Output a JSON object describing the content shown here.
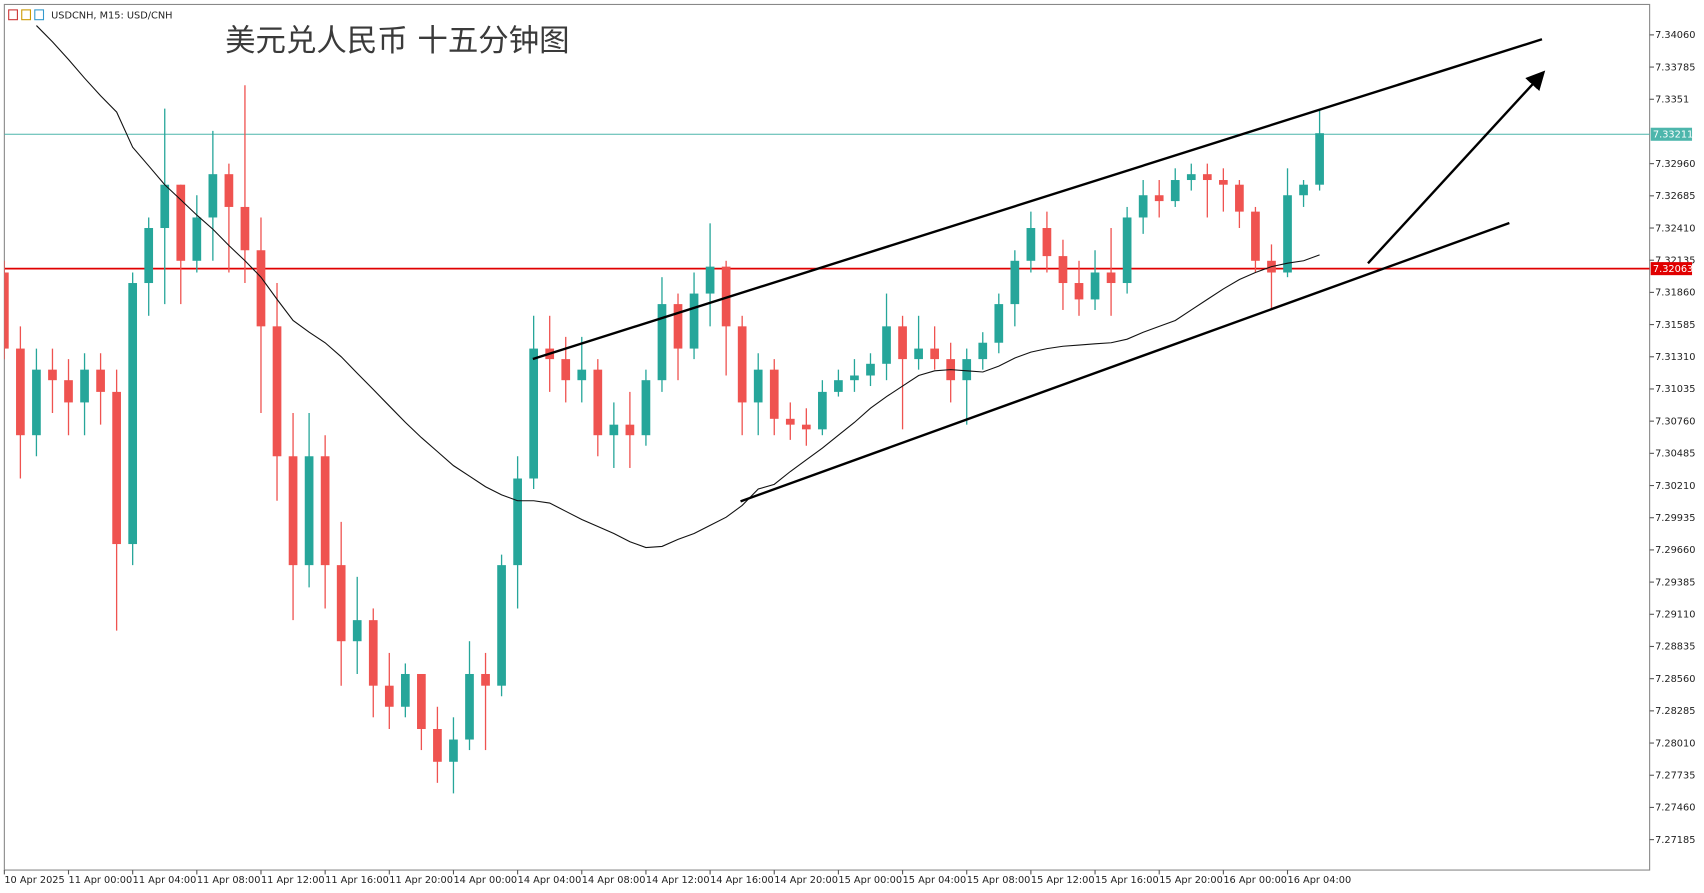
{
  "chart_data": {
    "type": "candlestick",
    "header": "USDCNH, M15: USD/CNH",
    "title": "美元兑人民币 十五分钟图",
    "categories": [
      "10 Apr 2025",
      null,
      null,
      null,
      "11 Apr 00:00",
      null,
      null,
      null,
      "11 Apr 04:00",
      null,
      null,
      null,
      "11 Apr 08:00",
      null,
      null,
      null,
      "11 Apr 12:00",
      null,
      null,
      null,
      "11 Apr 16:00",
      null,
      null,
      null,
      "11 Apr 20:00",
      null,
      null,
      null,
      "14 Apr 00:00",
      null,
      null,
      null,
      "14 Apr 04:00",
      null,
      null,
      null,
      "14 Apr 08:00",
      null,
      null,
      null,
      "14 Apr 12:00",
      null,
      null,
      null,
      "14 Apr 16:00",
      null,
      null,
      null,
      "14 Apr 20:00",
      null,
      null,
      null,
      "15 Apr 00:00",
      null,
      null,
      null,
      "15 Apr 04:00",
      null,
      null,
      null,
      "15 Apr 08:00",
      null,
      null,
      null,
      "15 Apr 12:00",
      null,
      null,
      null,
      "15 Apr 16:00",
      null,
      null,
      null,
      "15 Apr 20:00",
      null,
      null,
      null,
      "16 Apr 00:00",
      null,
      null,
      null,
      "16 Apr 04:00",
      null,
      null
    ],
    "open": [
      7.3203,
      7.3138,
      7.3064,
      7.312,
      7.3111,
      7.3092,
      7.312,
      7.3101,
      7.2971,
      7.3194,
      7.3241,
      7.3278,
      7.3213,
      7.325,
      7.3287,
      7.3259,
      7.3222,
      7.3157,
      7.3046,
      7.2953,
      7.3046,
      7.2953,
      7.2888,
      7.2906,
      7.285,
      7.2832,
      7.286,
      7.2813,
      7.2785,
      7.2804,
      7.286,
      7.285,
      7.2953,
      7.3027,
      7.3138,
      7.3129,
      7.3111,
      7.312,
      7.3064,
      7.3073,
      7.3064,
      7.3111,
      7.3176,
      7.3138,
      7.3185,
      7.3208,
      7.3157,
      7.3092,
      7.312,
      7.3078,
      7.3073,
      7.3069,
      7.3101,
      7.3111,
      7.3115,
      7.3125,
      7.3157,
      7.3129,
      7.3138,
      7.3129,
      7.3111,
      7.3129,
      7.3143,
      7.3176,
      7.3213,
      7.3241,
      7.3217,
      7.3194,
      7.318,
      7.3203,
      7.3194,
      7.325,
      7.3269,
      7.3264,
      7.3282,
      7.3287,
      7.3282,
      7.3278,
      7.3255,
      7.3213,
      7.3203,
      7.3269,
      7.3278
    ],
    "high": [
      7.3213,
      7.3157,
      7.3138,
      7.3138,
      7.3129,
      7.3134,
      7.3134,
      7.312,
      7.3203,
      7.325,
      7.3343,
      7.3278,
      7.3269,
      7.3324,
      7.3296,
      7.3363,
      7.325,
      7.3194,
      7.3083,
      7.3083,
      7.3064,
      7.299,
      7.2943,
      7.2916,
      7.2878,
      7.2869,
      7.286,
      7.2832,
      7.2823,
      7.2888,
      7.2878,
      7.2962,
      7.3046,
      7.3166,
      7.3166,
      7.3148,
      7.3148,
      7.3129,
      7.3092,
      7.3101,
      7.312,
      7.3199,
      7.3185,
      7.3203,
      7.3245,
      7.3213,
      7.3166,
      7.3134,
      7.3129,
      7.3092,
      7.3087,
      7.3111,
      7.312,
      7.3129,
      7.3134,
      7.3185,
      7.3166,
      7.3166,
      7.3157,
      7.3143,
      7.3138,
      7.3152,
      7.3185,
      7.3222,
      7.3255,
      7.3255,
      7.3231,
      7.3213,
      7.3222,
      7.3241,
      7.3259,
      7.3282,
      7.3282,
      7.3292,
      7.3296,
      7.3296,
      7.3292,
      7.3282,
      7.3259,
      7.3227,
      7.3292,
      7.3282,
      7.3343
    ],
    "low": [
      7.3129,
      7.3027,
      7.3046,
      7.3083,
      7.3064,
      7.3064,
      7.3073,
      7.2897,
      7.2953,
      7.3166,
      7.3176,
      7.3176,
      7.3203,
      7.3213,
      7.3203,
      7.3194,
      7.3083,
      7.3008,
      7.2906,
      7.2934,
      7.2916,
      7.285,
      7.286,
      7.2823,
      7.2813,
      7.2823,
      7.2795,
      7.2767,
      7.2758,
      7.2795,
      7.2795,
      7.2841,
      7.2916,
      7.3018,
      7.3101,
      7.3092,
      7.3092,
      7.3046,
      7.3036,
      7.3036,
      7.3055,
      7.3101,
      7.3111,
      7.3129,
      7.3157,
      7.3115,
      7.3064,
      7.3064,
      7.3064,
      7.306,
      7.3055,
      7.3064,
      7.3097,
      7.3101,
      7.3106,
      7.3111,
      7.3069,
      7.312,
      7.312,
      7.3092,
      7.3073,
      7.312,
      7.3134,
      7.3157,
      7.3203,
      7.3203,
      7.3171,
      7.3166,
      7.3171,
      7.3166,
      7.3185,
      7.3236,
      7.325,
      7.3259,
      7.3273,
      7.325,
      7.3255,
      7.3241,
      7.3203,
      7.3171,
      7.3199,
      7.3259,
      7.3273
    ],
    "close": [
      7.3138,
      7.3064,
      7.312,
      7.3111,
      7.3092,
      7.312,
      7.3101,
      7.2971,
      7.3194,
      7.3241,
      7.3278,
      7.3213,
      7.325,
      7.3287,
      7.3259,
      7.3222,
      7.3157,
      7.3046,
      7.2953,
      7.3046,
      7.2953,
      7.2888,
      7.2906,
      7.285,
      7.2832,
      7.286,
      7.2813,
      7.2785,
      7.2804,
      7.286,
      7.285,
      7.2953,
      7.3027,
      7.3138,
      7.3129,
      7.3111,
      7.312,
      7.3064,
      7.3073,
      7.3064,
      7.3111,
      7.3176,
      7.3138,
      7.3185,
      7.3208,
      7.3157,
      7.3092,
      7.312,
      7.3078,
      7.3073,
      7.3069,
      7.3101,
      7.3111,
      7.3115,
      7.3125,
      7.3157,
      7.3129,
      7.3138,
      7.3129,
      7.3111,
      7.3129,
      7.3143,
      7.3176,
      7.3213,
      7.3241,
      7.3217,
      7.3194,
      7.318,
      7.3203,
      7.3194,
      7.325,
      7.3269,
      7.3264,
      7.3282,
      7.3287,
      7.3282,
      7.3278,
      7.3255,
      7.3213,
      7.3203,
      7.3269,
      7.3278,
      7.3322
    ],
    "moving_average": [
      null,
      null,
      7.3414,
      7.34,
      7.3385,
      7.3369,
      7.3354,
      7.334,
      7.331,
      7.3294,
      7.3278,
      7.3265,
      7.3252,
      7.324,
      7.3226,
      7.3213,
      7.3199,
      7.318,
      7.3162,
      7.3152,
      7.3143,
      7.3131,
      7.3117,
      7.3103,
      7.3089,
      7.3075,
      7.3062,
      7.305,
      7.3038,
      7.3029,
      7.302,
      7.3013,
      7.3008,
      7.3008,
      7.3006,
      7.2999,
      7.2992,
      7.2986,
      7.298,
      7.2973,
      7.2968,
      7.2969,
      7.2975,
      7.298,
      7.2987,
      7.2994,
      7.3004,
      7.3018,
      7.3022,
      7.3033,
      7.3043,
      7.3053,
      7.3064,
      7.3075,
      7.3087,
      7.3097,
      7.3106,
      7.3115,
      7.3119,
      7.312,
      7.3119,
      7.3118,
      7.3123,
      7.313,
      7.3135,
      7.3138,
      7.314,
      7.3141,
      7.3142,
      7.3143,
      7.3146,
      7.3152,
      7.3157,
      7.3162,
      7.3171,
      7.318,
      7.3189,
      7.3197,
      7.3203,
      7.3208,
      7.3211,
      7.3213,
      7.3218
    ],
    "up_color": "#26a69a",
    "down_color": "#ef5350",
    "ma_color": "#111111",
    "hlines": [
      {
        "value": 7.33211,
        "color": "#4db6ac"
      },
      {
        "value": 7.32063,
        "color": "#e00000"
      }
    ],
    "ylim": [
      7.26925,
      7.34357
    ],
    "yticks": [
      {
        "value": 7.3406,
        "label": "7.34060"
      },
      7.33785,
      7.3351,
      7.32685,
      {
        "value": 7.3296,
        "label": "7.32960"
      },
      {
        "value": 7.3241,
        "label": "7.32410"
      },
      7.32135,
      {
        "value": 7.3186,
        "label": "7.31860"
      },
      7.31585,
      {
        "value": 7.3131,
        "label": "7.31310"
      },
      7.31035,
      {
        "value": 7.3076,
        "label": "7.30760"
      },
      7.30485,
      {
        "value": 7.3021,
        "label": "7.30210"
      },
      7.29935,
      {
        "value": 7.2966,
        "label": "7.29660"
      },
      7.29385,
      {
        "value": 7.2911,
        "label": "7.29110"
      },
      7.28835,
      {
        "value": 7.2856,
        "label": "7.28560"
      },
      7.28285,
      {
        "value": 7.2801,
        "label": "7.28010"
      },
      7.27735,
      {
        "value": 7.2746,
        "label": "7.27460"
      },
      7.27185
    ],
    "grid": false
  }
}
